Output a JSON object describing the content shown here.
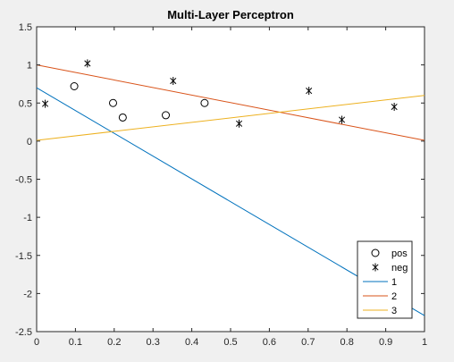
{
  "chart_data": {
    "type": "scatter",
    "title": "Multi-Layer Perceptron",
    "xlabel": "",
    "ylabel": "",
    "xlim": [
      0,
      1
    ],
    "ylim": [
      -2.5,
      1.5
    ],
    "x_ticks": [
      0,
      0.1,
      0.2,
      0.3,
      0.4,
      0.5,
      0.6,
      0.7,
      0.8,
      0.9,
      1
    ],
    "x_tick_labels": [
      "0",
      "0.1",
      "0.2",
      "0.3",
      "0.4",
      "0.5",
      "0.6",
      "0.7",
      "0.8",
      "0.9",
      "1"
    ],
    "y_ticks": [
      1.5,
      1,
      0.5,
      0,
      -0.5,
      -1,
      -1.5,
      -2,
      -2.5
    ],
    "y_tick_labels": [
      "1.5",
      "1",
      "0.5",
      "0",
      "-0.5",
      "-1",
      "-1.5",
      "-2",
      "-2.5"
    ],
    "grid": false,
    "legend_position": "bottom-right",
    "series": [
      {
        "name": "pos",
        "kind": "scatter",
        "marker": "circle",
        "color": "#000000",
        "points": [
          [
            0.097,
            0.72
          ],
          [
            0.197,
            0.5
          ],
          [
            0.222,
            0.31
          ],
          [
            0.333,
            0.34
          ],
          [
            0.433,
            0.5
          ]
        ]
      },
      {
        "name": "neg",
        "kind": "scatter",
        "marker": "asterisk",
        "color": "#000000",
        "points": [
          [
            0.022,
            0.49
          ],
          [
            0.131,
            1.02
          ],
          [
            0.352,
            0.79
          ],
          [
            0.522,
            0.23
          ],
          [
            0.702,
            0.66
          ],
          [
            0.787,
            0.28
          ],
          [
            0.922,
            0.45
          ]
        ]
      },
      {
        "name": "1",
        "kind": "line",
        "color": "#0072BD",
        "points": [
          [
            0,
            0.7
          ],
          [
            1,
            -2.29
          ]
        ]
      },
      {
        "name": "2",
        "kind": "line",
        "color": "#D95319",
        "points": [
          [
            0,
            1.0
          ],
          [
            1,
            0.01
          ]
        ]
      },
      {
        "name": "3",
        "kind": "line",
        "color": "#EDB120",
        "points": [
          [
            0,
            0.01
          ],
          [
            1,
            0.6
          ]
        ]
      }
    ]
  }
}
